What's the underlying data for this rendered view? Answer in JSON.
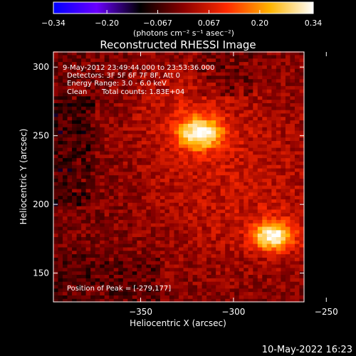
{
  "chart_data": {
    "type": "heatmap",
    "title": "Reconstructed RHESSI Image",
    "xlabel": "Heliocentric X (arcsec)",
    "ylabel": "Heliocentric Y (arcsec)",
    "xlim": [
      -397,
      -262
    ],
    "ylim": [
      129,
      311
    ],
    "x_ticks": [
      -350,
      -300,
      -250
    ],
    "x_tick_labels": [
      "−350",
      "−300",
      "−250"
    ],
    "y_ticks": [
      150,
      200,
      250,
      300
    ],
    "y_tick_labels": [
      "150",
      "200",
      "250",
      "300"
    ],
    "colorbar": {
      "min": -0.34,
      "max": 0.34,
      "ticks": [
        -0.34,
        -0.2,
        -0.067,
        0.067,
        0.2,
        0.34
      ],
      "tick_labels": [
        "−0.34",
        "−0.20",
        "−0.067",
        "0.067",
        "0.20",
        "0.34"
      ],
      "unit_label": "(photons cm⁻² s⁻¹ asec⁻²)",
      "colors": [
        "#0000ff",
        "#6a00ff",
        "#000000",
        "#8a0000",
        "#ff2a00",
        "#ffb400",
        "#ffffff"
      ]
    },
    "sources": [
      {
        "x": -318,
        "y": 252,
        "peak": 0.34,
        "sigma": 8
      },
      {
        "x": -279,
        "y": 177,
        "peak": 0.34,
        "sigma": 7
      }
    ],
    "annotations": {
      "time": "9-May-2012 23:49:44.000 to 23:53:36.000",
      "detectors": "Detectors: 3F 5F 6F 7F 8F, Att 0",
      "energy": "Energy Range: 3.0 - 6.0 keV",
      "clean": "Clean",
      "counts": "Total counts: 1.83E+04",
      "peak": "Position of Peak = [-279,177]"
    }
  },
  "footer": {
    "timestamp": "10-May-2022 16:23"
  }
}
